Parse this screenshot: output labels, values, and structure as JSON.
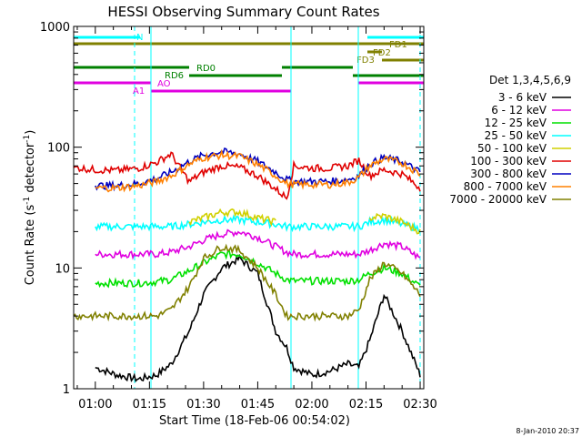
{
  "chart_data": {
    "type": "line",
    "title": "HESSI Observing Summary Count Rates",
    "xlabel": "Start Time (18-Feb-06 00:54:02)",
    "ylabel_main": "Count Rate (s",
    "ylabel_sup1": "-1",
    "ylabel_mid": " detector",
    "ylabel_sup2": "-1",
    "ylabel_end": ")",
    "yscale": "log",
    "ylim": [
      1,
      1000
    ],
    "xlim": [
      "00:54",
      "02:31"
    ],
    "x_ticks": [
      "01:00",
      "01:15",
      "01:30",
      "01:45",
      "02:00",
      "02:15",
      "02:30"
    ],
    "y_ticks": [
      "1",
      "10",
      "100",
      "1000"
    ],
    "legend_title": "Det 1,3,4,5,6,9",
    "legend_position": "right",
    "timestamp": "8-Jan-2010 20:37",
    "x_times": [
      "00:54",
      "01:00",
      "01:06",
      "01:12",
      "01:17",
      "01:21",
      "01:26",
      "01:30",
      "01:35",
      "01:40",
      "01:45",
      "01:50",
      "01:53",
      "01:55",
      "02:00",
      "02:05",
      "02:10",
      "02:13",
      "02:16",
      "02:20",
      "02:25",
      "02:30"
    ],
    "series": [
      {
        "name": "3 - 6 keV",
        "color": "#000000",
        "values": [
          null,
          1.5,
          1.3,
          1.2,
          1.3,
          1.6,
          3,
          6,
          10,
          12,
          9,
          3,
          2.2,
          1.5,
          1.3,
          1.4,
          1.6,
          1.5,
          2.5,
          6,
          3,
          1.3
        ]
      },
      {
        "name": "6 - 12 keV",
        "color": "#e000e0",
        "values": [
          null,
          13,
          13,
          13,
          13,
          13.5,
          15,
          17,
          19,
          20,
          18,
          15,
          13.5,
          13,
          13,
          13,
          13,
          13,
          14,
          16,
          15,
          12
        ]
      },
      {
        "name": "12 - 25 keV",
        "color": "#00e000",
        "values": [
          null,
          7.5,
          7.5,
          7.5,
          7.7,
          8,
          9.5,
          11,
          13,
          13,
          11,
          9,
          8,
          7.8,
          7.8,
          7.8,
          7.8,
          8,
          9,
          10,
          9,
          7
        ]
      },
      {
        "name": "25 - 50 keV",
        "color": "#00ffff",
        "values": [
          null,
          22,
          22,
          22,
          22,
          22,
          23,
          24,
          25,
          25,
          24,
          23,
          22,
          22,
          22,
          22,
          22,
          22,
          24,
          25,
          23,
          21
        ]
      },
      {
        "name": "50 - 100 keV",
        "color": "#d0d000",
        "values": [
          null,
          null,
          null,
          null,
          null,
          null,
          24,
          26,
          29,
          29,
          26,
          24,
          null,
          null,
          null,
          null,
          null,
          null,
          26,
          27,
          24,
          20
        ]
      },
      {
        "name": "100 - 300 keV",
        "color": "#e00000",
        "values": [
          68,
          65,
          64,
          67,
          75,
          88,
          52,
          62,
          70,
          68,
          58,
          45,
          38,
          70,
          67,
          67,
          70,
          78,
          58,
          65,
          60,
          46
        ]
      },
      {
        "name": "300 - 800 keV",
        "color": "#0000c0",
        "values": [
          null,
          48,
          48,
          50,
          55,
          62,
          76,
          86,
          92,
          88,
          76,
          62,
          54,
          52,
          52,
          52,
          54,
          58,
          72,
          82,
          76,
          62
        ]
      },
      {
        "name": "800 - 7000 keV",
        "color": "#ff8000",
        "values": [
          null,
          46,
          46,
          48,
          52,
          58,
          72,
          82,
          86,
          84,
          72,
          58,
          50,
          49,
          49,
          49,
          51,
          56,
          70,
          80,
          74,
          60
        ]
      },
      {
        "name": "7000 - 20000 keV",
        "color": "#808000",
        "values": [
          4,
          4,
          4,
          4,
          4,
          4.5,
          7,
          12,
          15,
          14,
          10,
          6,
          4,
          4,
          4,
          4,
          4,
          4.5,
          8,
          11,
          9,
          6
        ]
      }
    ],
    "observing_flags": [
      {
        "label": "N",
        "color": "#00ffff"
      },
      {
        "label": "FD1",
        "color": "#808000"
      },
      {
        "label": "FD2",
        "color": "#808000"
      },
      {
        "label": "FD3",
        "color": "#808000"
      },
      {
        "label": "RD0",
        "color": "#008000"
      },
      {
        "label": "RD6",
        "color": "#008000"
      },
      {
        "label": "AO",
        "color": "#e000e0"
      },
      {
        "label": "A1",
        "color": "#e000e0"
      }
    ]
  }
}
